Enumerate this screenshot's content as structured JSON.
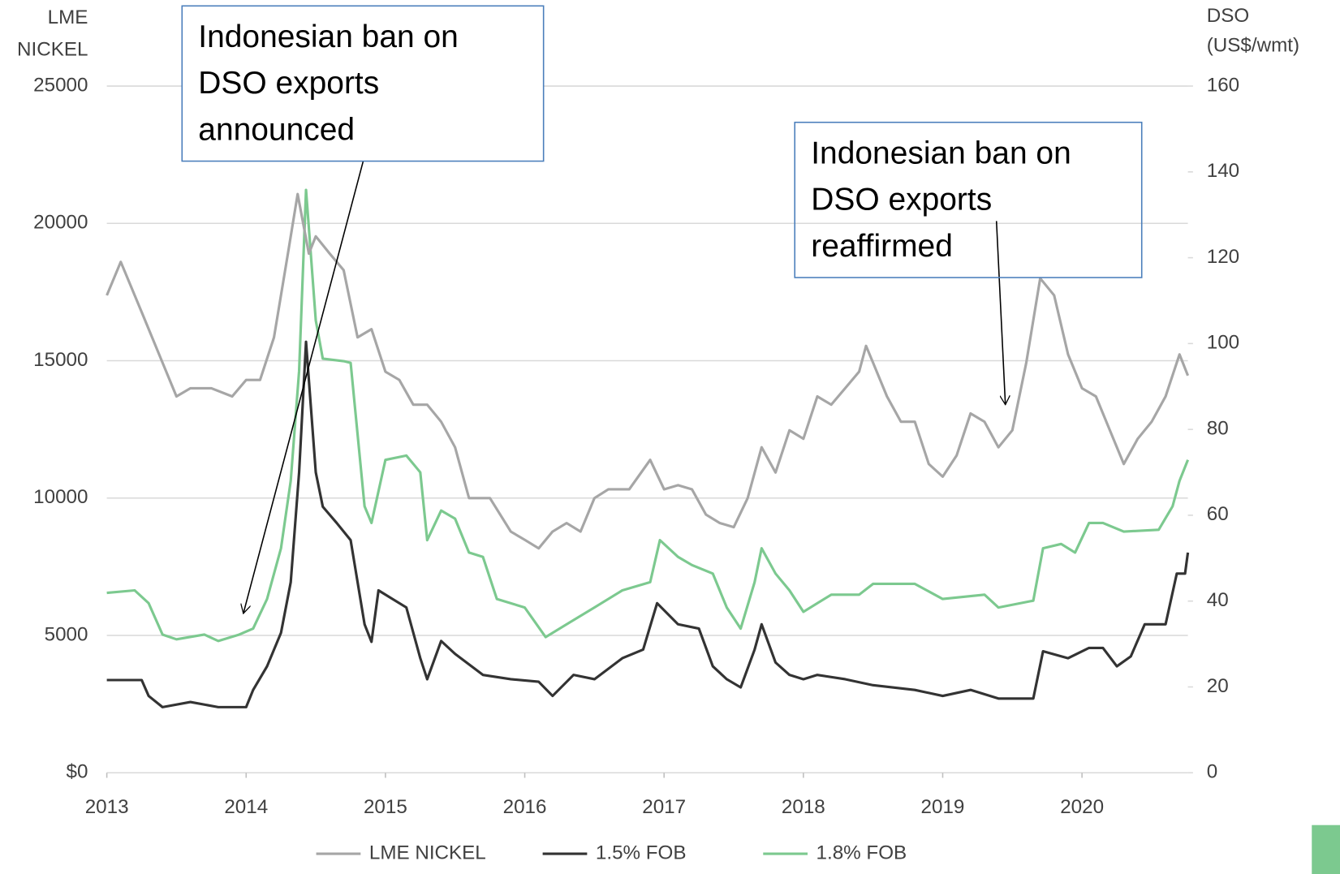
{
  "chart_data": {
    "type": "line",
    "y_label": [
      "LME",
      "NICKEL"
    ],
    "y2_label": [
      "DSO",
      "(US$/wmt)"
    ],
    "xlim": [
      2013,
      2020.76
    ],
    "xticks": [
      2013,
      2014,
      2015,
      2016,
      2017,
      2018,
      2019,
      2020
    ],
    "ylim": [
      0,
      25000
    ],
    "yticks": [
      {
        "value": 0,
        "label": "$0"
      },
      5000,
      10000,
      15000,
      20000,
      25000
    ],
    "y2lim": [
      0,
      160
    ],
    "y2ticks": [
      0,
      20,
      40,
      60,
      80,
      100,
      120,
      140,
      160
    ],
    "grid": true,
    "legend": "bottom",
    "annotations": [
      {
        "lines": [
          "Indonesian ban on",
          "DSO exports",
          "announced"
        ],
        "x": 2013.98,
        "y": 5800
      },
      {
        "lines": [
          "Indonesian ban on",
          "DSO exports",
          "reaffirmed"
        ],
        "x": 2019.45,
        "y": 13400
      }
    ],
    "series": [
      {
        "name": "LME NICKEL",
        "color": "#a6a6a6",
        "x": [
          2013.0,
          2013.1,
          2013.25,
          2013.4,
          2013.5,
          2013.6,
          2013.75,
          2013.9,
          2014.0,
          2014.1,
          2014.2,
          2014.3,
          2014.37,
          2014.45,
          2014.5,
          2014.6,
          2014.7,
          2014.8,
          2014.9,
          2015.0,
          2015.1,
          2015.2,
          2015.3,
          2015.4,
          2015.5,
          2015.6,
          2015.75,
          2015.9,
          2016.0,
          2016.1,
          2016.2,
          2016.3,
          2016.4,
          2016.5,
          2016.6,
          2016.75,
          2016.9,
          2017.0,
          2017.1,
          2017.2,
          2017.3,
          2017.4,
          2017.5,
          2017.6,
          2017.7,
          2017.8,
          2017.9,
          2018.0,
          2018.1,
          2018.2,
          2018.3,
          2018.4,
          2018.45,
          2018.5,
          2018.6,
          2018.7,
          2018.8,
          2018.9,
          2019.0,
          2019.1,
          2019.2,
          2019.3,
          2019.4,
          2019.5,
          2019.6,
          2019.7,
          2019.8,
          2019.9,
          2020.0,
          2020.1,
          2020.2,
          2020.3,
          2020.4,
          2020.5,
          2020.6,
          2020.7,
          2020.76
        ],
        "values": [
          17380,
          18600,
          16770,
          14930,
          13700,
          14000,
          14000,
          13700,
          14300,
          14300,
          15850,
          18900,
          21070,
          18900,
          19530,
          18900,
          18300,
          15850,
          16150,
          14600,
          14300,
          13400,
          13400,
          12780,
          11850,
          10000,
          10000,
          8780,
          8480,
          8170,
          8780,
          9090,
          8780,
          10000,
          10320,
          10320,
          11390,
          10320,
          10470,
          10320,
          9400,
          9090,
          8940,
          10000,
          11850,
          10930,
          12470,
          12160,
          13700,
          13400,
          14000,
          14600,
          15540,
          14930,
          13700,
          12780,
          12780,
          11240,
          10780,
          11550,
          13080,
          12780,
          11850,
          12470,
          14930,
          18000,
          17380,
          15230,
          14000,
          13700,
          12470,
          11240,
          12160,
          12780,
          13700,
          15230,
          14460
        ]
      },
      {
        "name": "1.5% FOB",
        "color": "#333333",
        "axis": "y2",
        "x": [
          2013.0,
          2013.25,
          2013.3,
          2013.4,
          2013.6,
          2013.8,
          2014.0,
          2014.05,
          2014.15,
          2014.25,
          2014.32,
          2014.38,
          2014.43,
          2014.5,
          2014.55,
          2014.65,
          2014.75,
          2014.85,
          2014.9,
          2014.95,
          2015.05,
          2015.15,
          2015.25,
          2015.3,
          2015.4,
          2015.5,
          2015.7,
          2015.9,
          2016.1,
          2016.2,
          2016.35,
          2016.5,
          2016.7,
          2016.85,
          2016.95,
          2017.1,
          2017.25,
          2017.35,
          2017.45,
          2017.55,
          2017.65,
          2017.7,
          2017.8,
          2017.9,
          2018.0,
          2018.1,
          2018.3,
          2018.5,
          2018.8,
          2019.0,
          2019.2,
          2019.4,
          2019.65,
          2019.72,
          2019.9,
          2020.05,
          2020.15,
          2020.25,
          2020.35,
          2020.45,
          2020.6,
          2020.68,
          2020.74,
          2020.76
        ],
        "values": [
          21.6,
          21.6,
          17.9,
          15.3,
          16.5,
          15.3,
          15.3,
          19.3,
          24.8,
          32.6,
          44.4,
          70,
          100.4,
          70,
          62,
          58.2,
          54.2,
          34.6,
          30.5,
          42.5,
          40.5,
          38.5,
          26.7,
          21.8,
          30.7,
          27.7,
          22.8,
          21.8,
          21.2,
          17.9,
          22.8,
          21.8,
          26.7,
          28.7,
          39.5,
          34.6,
          33.6,
          24.8,
          21.8,
          19.9,
          28.7,
          34.6,
          25.7,
          22.8,
          21.8,
          22.8,
          21.8,
          20.4,
          19.3,
          17.9,
          19.3,
          17.3,
          17.3,
          28.3,
          26.7,
          29.1,
          29.1,
          24.8,
          27.1,
          34.6,
          34.6,
          46.4,
          46.4,
          51.3
        ]
      },
      {
        "name": "1.8% FOB",
        "color": "#7cc98f",
        "axis": "y2",
        "x": [
          2013.0,
          2013.2,
          2013.3,
          2013.4,
          2013.5,
          2013.7,
          2013.8,
          2013.95,
          2014.05,
          2014.15,
          2014.25,
          2014.32,
          2014.38,
          2014.43,
          2014.5,
          2014.55,
          2014.7,
          2014.75,
          2014.85,
          2014.9,
          2015.0,
          2015.15,
          2015.25,
          2015.3,
          2015.4,
          2015.5,
          2015.6,
          2015.7,
          2015.8,
          2016.0,
          2016.15,
          2016.3,
          2016.5,
          2016.7,
          2016.9,
          2016.97,
          2017.1,
          2017.2,
          2017.35,
          2017.45,
          2017.55,
          2017.65,
          2017.7,
          2017.8,
          2017.9,
          2018.0,
          2018.1,
          2018.2,
          2018.4,
          2018.5,
          2018.8,
          2019.0,
          2019.3,
          2019.4,
          2019.65,
          2019.72,
          2019.85,
          2019.95,
          2020.05,
          2020.15,
          2020.3,
          2020.55,
          2020.65,
          2020.7,
          2020.76
        ],
        "values": [
          41.9,
          42.5,
          39.5,
          32.2,
          31.1,
          32.2,
          30.7,
          32.2,
          33.6,
          40.5,
          52.3,
          68,
          93.6,
          135.8,
          105.4,
          96.5,
          95.9,
          95.5,
          62.1,
          58.2,
          72.9,
          73.9,
          70,
          54.2,
          61.1,
          59.2,
          51.3,
          50.3,
          40.5,
          38.5,
          31.6,
          34.6,
          38.5,
          42.5,
          44.4,
          54.2,
          50.3,
          48.4,
          46.4,
          38.5,
          33.6,
          44.4,
          52.3,
          46.4,
          42.5,
          37.5,
          39.5,
          41.5,
          41.5,
          44,
          44,
          40.5,
          41.5,
          38.5,
          40.1,
          52.3,
          53.3,
          51.3,
          58.2,
          58.2,
          56.2,
          56.6,
          62.1,
          68,
          72.9
        ]
      }
    ]
  }
}
